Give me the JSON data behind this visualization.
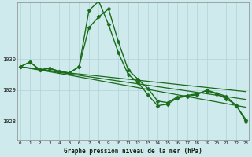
{
  "background_color": "#ceeaec",
  "grid_color": "#afd4d6",
  "line_color": "#1a6b1a",
  "title": "Graphe pression niveau de la mer (hPa)",
  "xlabel_hours": [
    0,
    1,
    2,
    3,
    4,
    5,
    6,
    7,
    8,
    9,
    10,
    11,
    12,
    13,
    14,
    15,
    16,
    17,
    18,
    19,
    20,
    21,
    22,
    23
  ],
  "yticks": [
    1028,
    1029,
    1030
  ],
  "ylim": [
    1027.4,
    1031.8
  ],
  "xlim": [
    -0.3,
    23.3
  ],
  "series": [
    {
      "x": [
        0,
        1,
        2,
        3,
        4,
        5,
        6,
        7,
        8,
        9,
        10,
        11,
        12,
        13,
        14,
        15,
        16,
        17,
        18,
        19,
        20,
        21,
        22,
        23
      ],
      "y": [
        1029.75,
        1029.9,
        1029.65,
        1029.7,
        1029.6,
        1029.55,
        1029.75,
        1031.55,
        1031.85,
        1031.1,
        1030.2,
        1029.5,
        1029.25,
        1028.85,
        1028.5,
        1028.55,
        1028.75,
        1028.8,
        1028.85,
        1029.0,
        1028.9,
        1028.8,
        1028.5,
        1028.05
      ],
      "marker": "D",
      "markersize": 2.5,
      "linewidth": 1.0
    },
    {
      "x": [
        0,
        1,
        2,
        3,
        4,
        5,
        6,
        7,
        8,
        9,
        10,
        11,
        12,
        13,
        14,
        15,
        16,
        17,
        18,
        19,
        20,
        21,
        22,
        23
      ],
      "y": [
        1029.75,
        1029.9,
        1029.65,
        1029.7,
        1029.6,
        1029.55,
        1029.75,
        1031.0,
        1031.35,
        1031.6,
        1030.55,
        1029.65,
        1029.35,
        1029.05,
        1028.65,
        1028.6,
        1028.78,
        1028.83,
        1028.88,
        1028.98,
        1028.88,
        1028.72,
        1028.52,
        1027.98
      ],
      "marker": "D",
      "markersize": 2.5,
      "linewidth": 1.0
    },
    {
      "x": [
        0,
        5,
        23
      ],
      "y": [
        1029.75,
        1029.55,
        1028.95
      ],
      "marker": null,
      "markersize": 0,
      "linewidth": 0.9
    },
    {
      "x": [
        0,
        5,
        23
      ],
      "y": [
        1029.75,
        1029.52,
        1028.7
      ],
      "marker": null,
      "markersize": 0,
      "linewidth": 0.9
    },
    {
      "x": [
        0,
        5,
        23
      ],
      "y": [
        1029.75,
        1029.48,
        1028.45
      ],
      "marker": null,
      "markersize": 0,
      "linewidth": 0.9
    }
  ]
}
